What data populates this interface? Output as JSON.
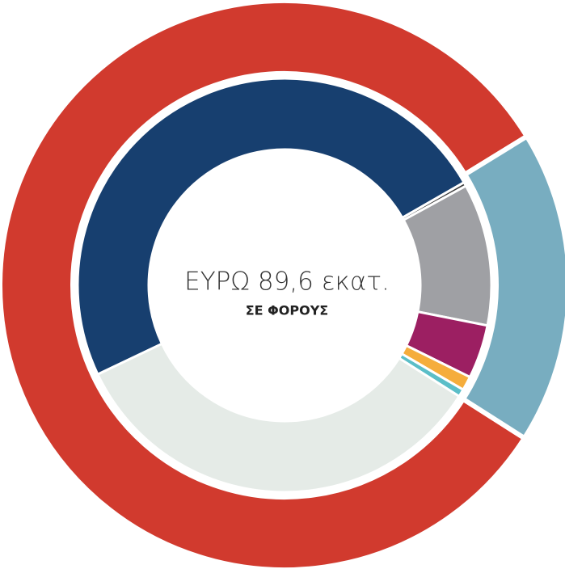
{
  "chart_data": [
    {
      "type": "donut",
      "title": "ΕΥΡΩ 89,6 εκατ.",
      "subtitle": "ΣΕ ΦΟΡΟΥΣ",
      "values": [
        82.2,
        17.8
      ],
      "colors": [
        "#d13a2e",
        "#78adc0"
      ]
    },
    {
      "type": "donut",
      "values": [
        48.8,
        0.3,
        11.1,
        4.2,
        1.1,
        0.6,
        33.9
      ],
      "colors": [
        "#173f6f",
        "#3b3b3b",
        "#9fa0a4",
        "#9c1f62",
        "#f5ad3c",
        "#5bbec8",
        "#e5ebe7"
      ]
    }
  ]
}
